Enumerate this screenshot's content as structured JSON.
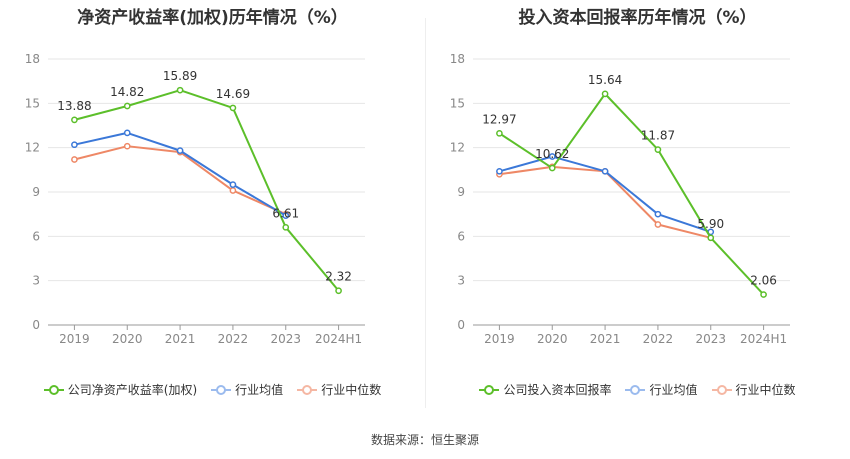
{
  "source": "数据来源：恒生聚源",
  "colors": {
    "company": "#5cbf2a",
    "avg": "#3b78d8",
    "median": "#ee8866"
  },
  "chart_data": [
    {
      "type": "line",
      "title": "净资产收益率(加权)历年情况（%）",
      "categories": [
        "2019",
        "2020",
        "2021",
        "2022",
        "2023",
        "2024H1"
      ],
      "yticks": [
        "0",
        "3",
        "6",
        "9",
        "12",
        "15",
        "18"
      ],
      "ylim": [
        0,
        18
      ],
      "grid": true,
      "legend_position": "bottom",
      "series": [
        {
          "name": "公司净资产收益率(加权)",
          "values": [
            13.88,
            14.82,
            15.89,
            14.69,
            6.61,
            2.32
          ],
          "labels": [
            "13.88",
            "14.82",
            "15.89",
            "14.69",
            "6.61",
            "2.32"
          ]
        },
        {
          "name": "行业均值",
          "values": [
            12.2,
            13.0,
            11.8,
            9.5,
            7.4,
            null
          ]
        },
        {
          "name": "行业中位数",
          "values": [
            11.2,
            12.1,
            11.7,
            9.1,
            7.5,
            null
          ]
        }
      ]
    },
    {
      "type": "line",
      "title": "投入资本回报率历年情况（%）",
      "categories": [
        "2019",
        "2020",
        "2021",
        "2022",
        "2023",
        "2024H1"
      ],
      "yticks": [
        "0",
        "3",
        "6",
        "9",
        "12",
        "15",
        "18"
      ],
      "ylim": [
        0,
        18
      ],
      "grid": true,
      "legend_position": "bottom",
      "series": [
        {
          "name": "公司投入资本回报率",
          "values": [
            12.97,
            10.62,
            15.64,
            11.87,
            5.9,
            2.06
          ],
          "labels": [
            "12.97",
            "10.62",
            "15.64",
            "11.87",
            "5.90",
            "2.06"
          ]
        },
        {
          "name": "行业均值",
          "values": [
            10.4,
            11.4,
            10.4,
            7.5,
            6.3,
            null
          ]
        },
        {
          "name": "行业中位数",
          "values": [
            10.2,
            10.7,
            10.4,
            6.8,
            5.9,
            null
          ]
        }
      ]
    }
  ]
}
